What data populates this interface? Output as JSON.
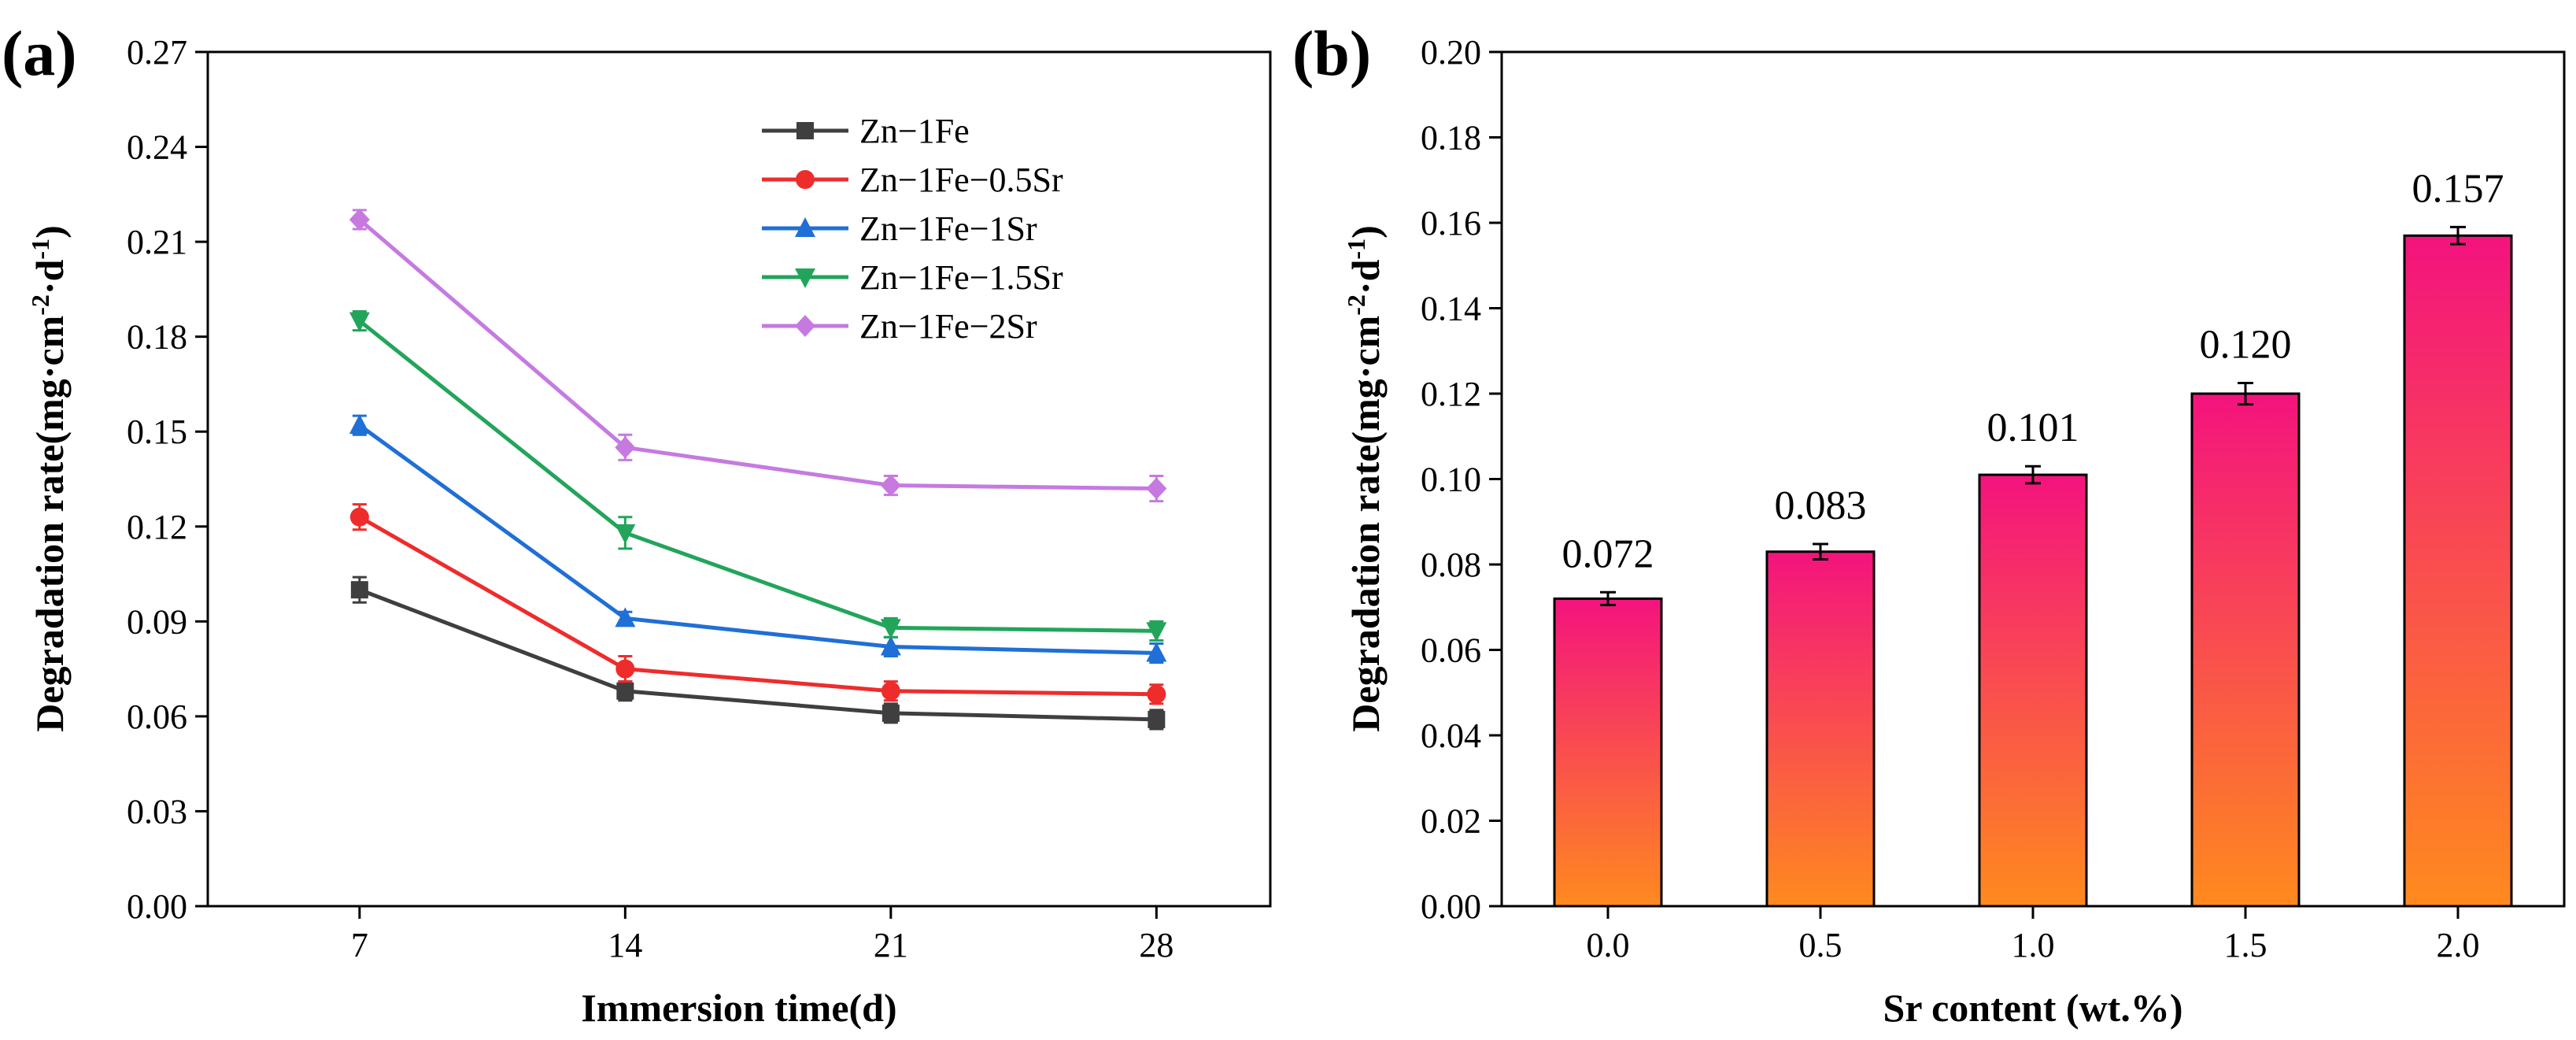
{
  "chart_data": [
    {
      "panel": "(a)",
      "type": "line",
      "title": "",
      "xlabel": "Immersion time(d)",
      "ylabel": "Degradation rate(mg·cm",
      "ylabel_sup1": "-2",
      "ylabel_mid": "·d",
      "ylabel_sup2": "-1",
      "ylabel_end": ")",
      "x": [
        7,
        14,
        21,
        28
      ],
      "x_tick_labels": [
        "7",
        "14",
        "21",
        "28"
      ],
      "xlim": [
        3,
        31
      ],
      "ylim": [
        0,
        0.27
      ],
      "y_ticks": [
        0,
        0.03,
        0.06,
        0.09,
        0.12,
        0.15,
        0.18,
        0.21,
        0.24,
        0.27
      ],
      "y_tick_labels": [
        "0.00",
        "0.03",
        "0.06",
        "0.09",
        "0.12",
        "0.15",
        "0.18",
        "0.21",
        "0.24",
        "0.27"
      ],
      "grid": false,
      "legend_position": "top-right",
      "series": [
        {
          "name": "Zn−1Fe",
          "color": "#3f3f3f",
          "marker": "square",
          "values": [
            0.1,
            0.068,
            0.061,
            0.059
          ],
          "errors": [
            0.004,
            0.003,
            0.003,
            0.003
          ]
        },
        {
          "name": "Zn−1Fe−0.5Sr",
          "color": "#ee2c2c",
          "marker": "circle",
          "values": [
            0.123,
            0.075,
            0.068,
            0.067
          ],
          "errors": [
            0.004,
            0.004,
            0.003,
            0.003
          ]
        },
        {
          "name": "Zn−1Fe−1Sr",
          "color": "#1f6fd6",
          "marker": "triangle-up",
          "values": [
            0.152,
            0.091,
            0.082,
            0.08
          ],
          "errors": [
            0.003,
            0.002,
            0.003,
            0.003
          ]
        },
        {
          "name": "Zn−1Fe−1.5Sr",
          "color": "#22a55a",
          "marker": "triangle-down",
          "values": [
            0.185,
            0.118,
            0.088,
            0.087
          ],
          "errors": [
            0.003,
            0.005,
            0.003,
            0.003
          ]
        },
        {
          "name": "Zn−1Fe−2Sr",
          "color": "#c67ae0",
          "marker": "diamond",
          "values": [
            0.217,
            0.145,
            0.133,
            0.132
          ],
          "errors": [
            0.003,
            0.004,
            0.003,
            0.004
          ]
        }
      ]
    },
    {
      "panel": "(b)",
      "type": "bar",
      "title": "",
      "xlabel": "Sr content (wt.%)",
      "ylabel": "Degradation rate(mg·cm",
      "ylabel_sup1": "-2",
      "ylabel_mid": "·d",
      "ylabel_sup2": "-1",
      "ylabel_end": ")",
      "categories": [
        "0.0",
        "0.5",
        "1.0",
        "1.5",
        "2.0"
      ],
      "values": [
        0.072,
        0.083,
        0.101,
        0.12,
        0.157
      ],
      "errors": [
        0.0015,
        0.0018,
        0.002,
        0.0025,
        0.002
      ],
      "value_labels": [
        "0.072",
        "0.083",
        "0.101",
        "0.120",
        "0.157"
      ],
      "ylim": [
        0,
        0.2
      ],
      "y_ticks": [
        0,
        0.02,
        0.04,
        0.06,
        0.08,
        0.1,
        0.12,
        0.14,
        0.16,
        0.18,
        0.2
      ],
      "y_tick_labels": [
        "0.00",
        "0.02",
        "0.04",
        "0.06",
        "0.08",
        "0.10",
        "0.12",
        "0.14",
        "0.16",
        "0.18",
        "0.20"
      ],
      "grid": false,
      "bar_gradient": {
        "top": "#f4137e",
        "bottom": "#ff8a1e"
      }
    }
  ]
}
